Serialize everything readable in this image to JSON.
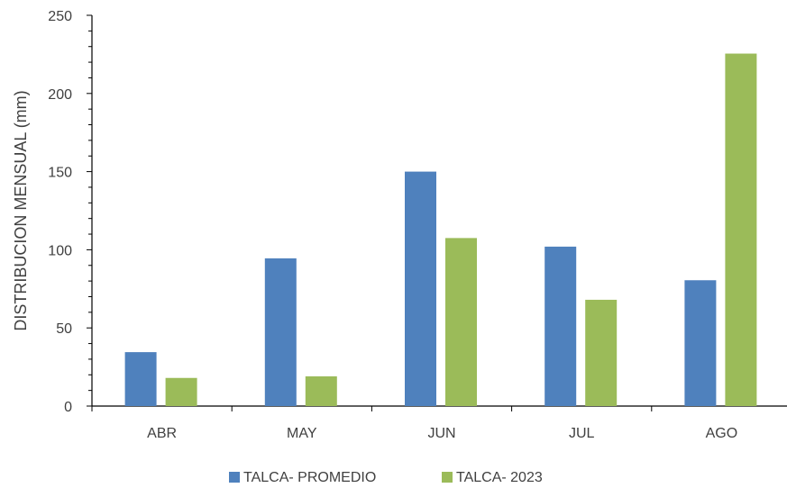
{
  "chart_data": {
    "type": "bar",
    "title": "",
    "xlabel": "",
    "ylabel": "DISTRIBUCION MENSUAL (mm)",
    "categories": [
      "ABR",
      "MAY",
      "JUN",
      "JUL",
      "AGO"
    ],
    "ylim": [
      0,
      250
    ],
    "yticks": [
      0,
      50,
      100,
      150,
      200,
      250
    ],
    "grid": false,
    "legend_position": "bottom",
    "series": [
      {
        "name": "TALCA- PROMEDIO",
        "color": "#4f81bd",
        "values": [
          34.5,
          94.5,
          150,
          102,
          80.5
        ]
      },
      {
        "name": "TALCA- 2023",
        "color": "#9bbb59",
        "values": [
          18,
          19,
          107.5,
          68,
          225.5
        ]
      }
    ]
  }
}
